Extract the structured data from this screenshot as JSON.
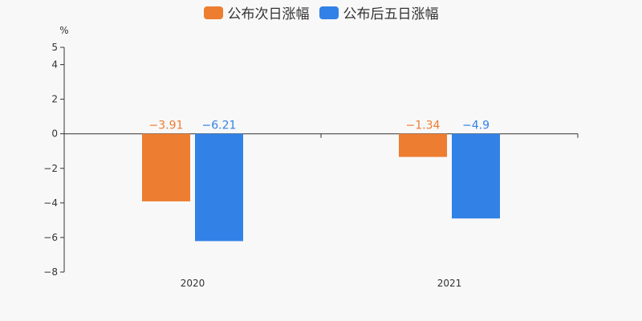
{
  "legend": {
    "series_1": "公布次日涨幅",
    "series_2": "公布后五日涨幅"
  },
  "colors": {
    "series_1": "#ed7d31",
    "series_2": "#3281e6",
    "axis": "#333333",
    "background": "#f8f8f8"
  },
  "chart_data": {
    "type": "bar",
    "categories": [
      "2020",
      "2021"
    ],
    "series": [
      {
        "name": "公布次日涨幅",
        "values": [
          -3.91,
          -1.34
        ],
        "labels": [
          "−3.91",
          "−1.34"
        ]
      },
      {
        "name": "公布后五日涨幅",
        "values": [
          -6.21,
          -4.9
        ],
        "labels": [
          "−6.21",
          "−4.9"
        ]
      }
    ],
    "ylabel": "%",
    "ylim": [
      -8,
      5
    ],
    "yticks": [
      5,
      4,
      2,
      0,
      -2,
      -4,
      -6,
      -8
    ],
    "ytick_labels": [
      "5",
      "4",
      "2",
      "0",
      "−2",
      "−4",
      "−6",
      "−8"
    ],
    "grid": false,
    "legend_position": "top-center"
  }
}
